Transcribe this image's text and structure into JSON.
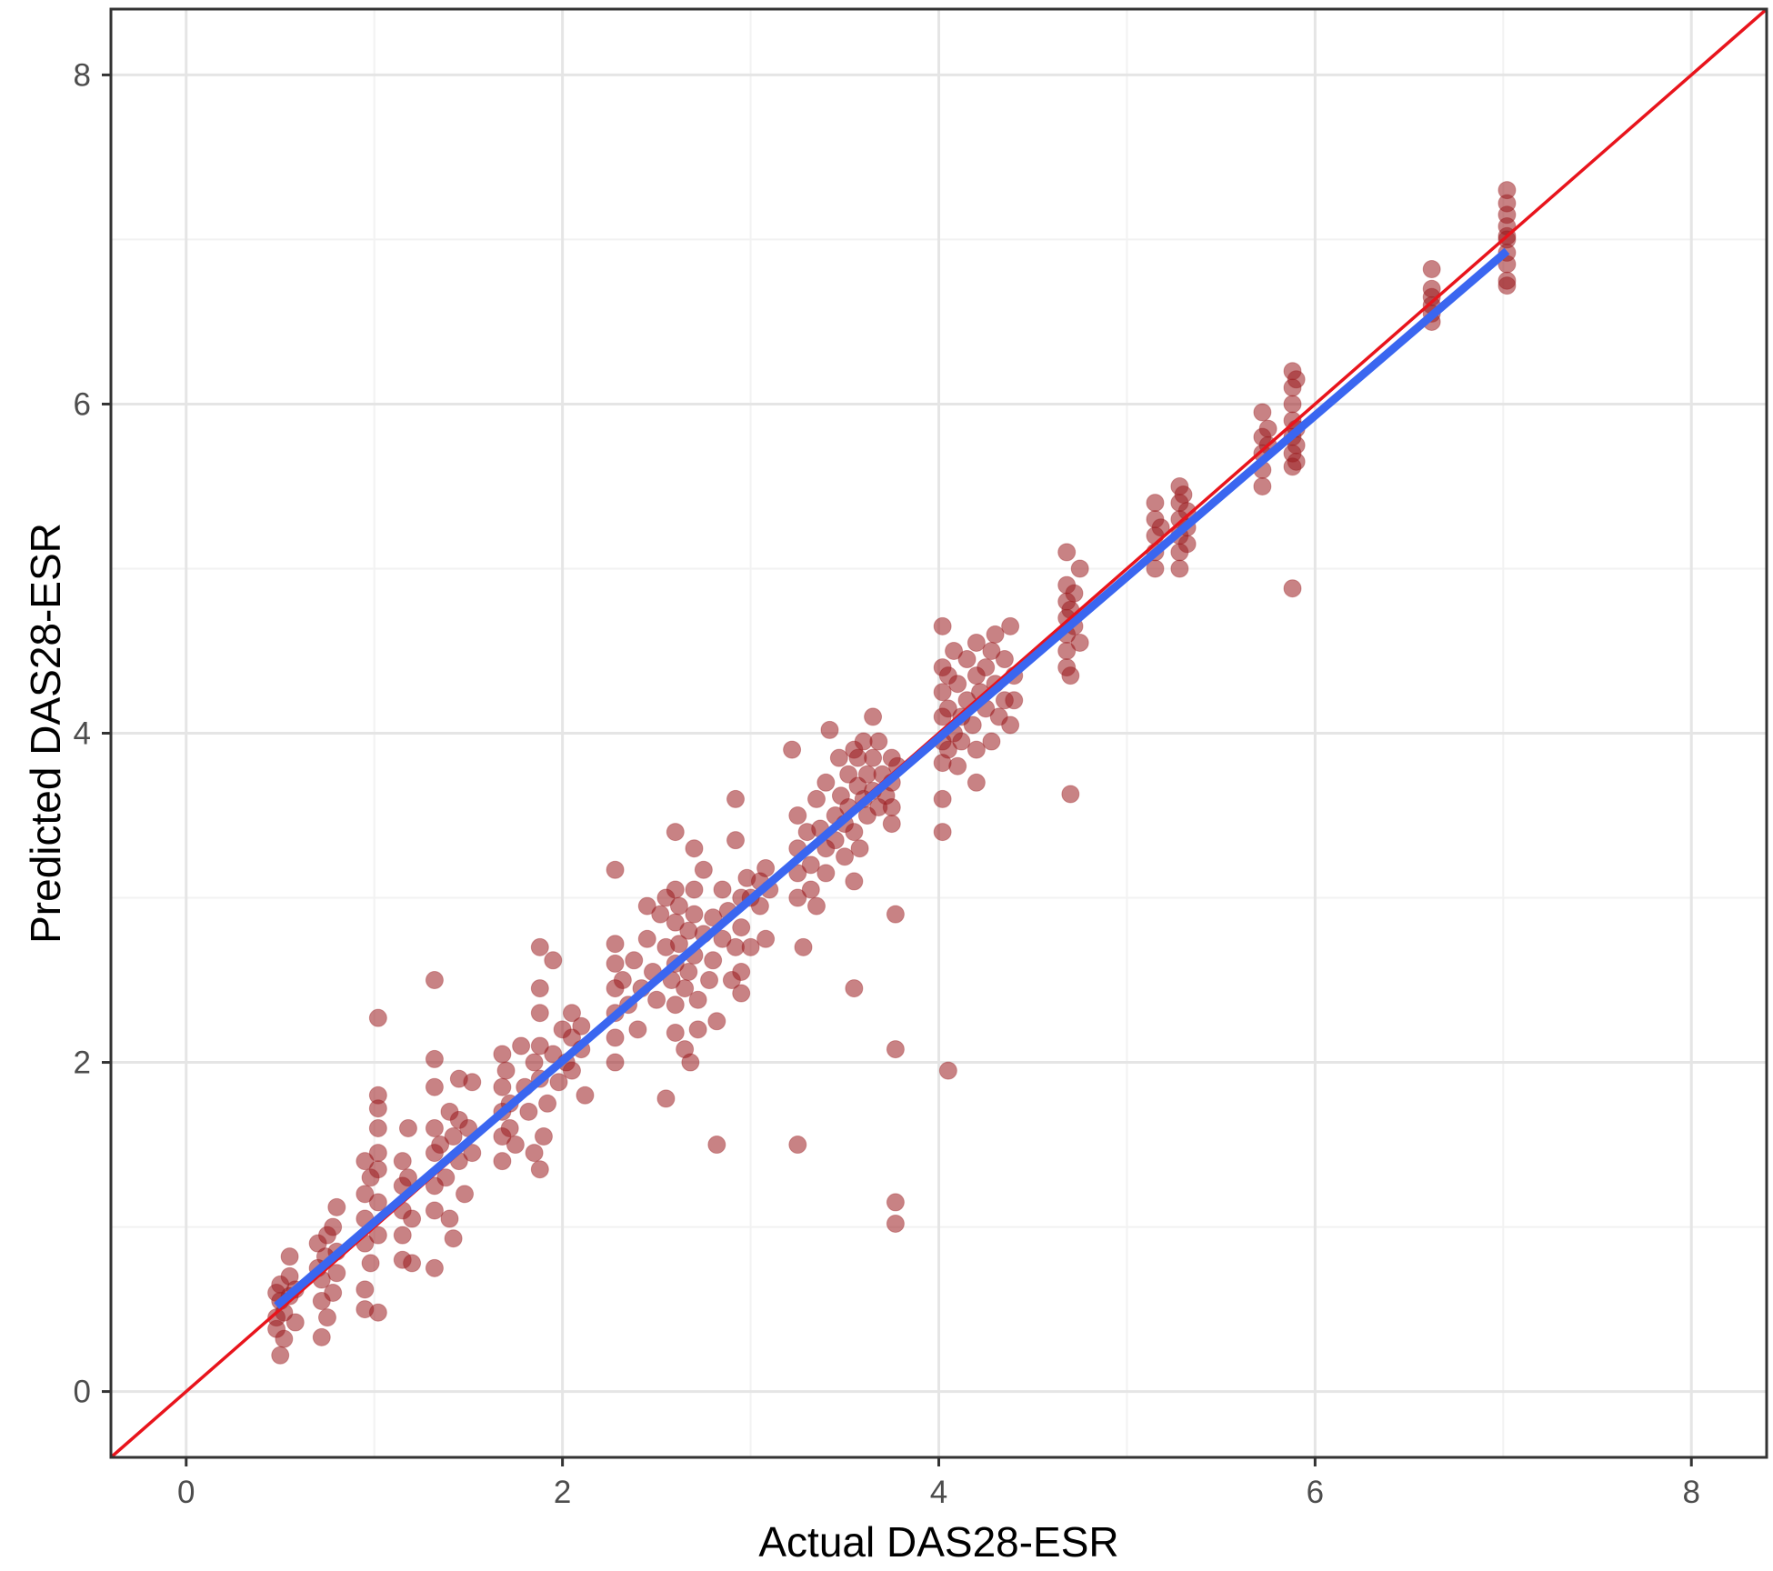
{
  "colors": {
    "points": "#9b1c1f",
    "identity_line": "#e8141c",
    "fit_line": "#3a66f0",
    "grid_major": "#e5e5e5",
    "grid_minor": "#f2f2f2",
    "panel_border": "#333333",
    "tick_text": "#4d4d4d"
  },
  "chart_data": {
    "type": "scatter",
    "title": "",
    "xlabel": "Actual DAS28-ESR",
    "ylabel": "Predicted DAS28-ESR",
    "xlim": [
      -0.4,
      8.4
    ],
    "ylim": [
      -0.4,
      8.4
    ],
    "x_ticks": [
      0,
      2,
      4,
      6,
      8
    ],
    "y_ticks": [
      0,
      2,
      4,
      6,
      8
    ],
    "x_tick_labels": [
      "0",
      "2",
      "4",
      "6",
      "8"
    ],
    "y_tick_labels": [
      "0",
      "2",
      "4",
      "6",
      "8"
    ],
    "grid": true,
    "lines": [
      {
        "kind": "identity",
        "x": [
          -0.4,
          8.4
        ],
        "y": [
          -0.4,
          8.4
        ]
      },
      {
        "kind": "regression",
        "x": [
          0.48,
          7.02
        ],
        "y": [
          0.52,
          6.93
        ]
      }
    ],
    "points": [
      [
        0.48,
        0.6
      ],
      [
        0.48,
        0.45
      ],
      [
        0.48,
        0.38
      ],
      [
        0.5,
        0.22
      ],
      [
        0.5,
        0.55
      ],
      [
        0.5,
        0.65
      ],
      [
        0.52,
        0.48
      ],
      [
        0.52,
        0.32
      ],
      [
        0.55,
        0.7
      ],
      [
        0.55,
        0.82
      ],
      [
        0.55,
        0.58
      ],
      [
        0.58,
        0.42
      ],
      [
        0.58,
        0.62
      ],
      [
        0.7,
        0.9
      ],
      [
        0.7,
        0.75
      ],
      [
        0.72,
        0.55
      ],
      [
        0.72,
        0.68
      ],
      [
        0.72,
        0.33
      ],
      [
        0.74,
        0.82
      ],
      [
        0.75,
        0.45
      ],
      [
        0.75,
        0.95
      ],
      [
        0.78,
        0.6
      ],
      [
        0.78,
        1.0
      ],
      [
        0.8,
        0.72
      ],
      [
        0.8,
        1.12
      ],
      [
        0.8,
        0.85
      ],
      [
        0.95,
        1.4
      ],
      [
        0.95,
        1.2
      ],
      [
        0.95,
        1.05
      ],
      [
        0.95,
        0.9
      ],
      [
        0.95,
        0.62
      ],
      [
        0.95,
        0.5
      ],
      [
        0.98,
        1.3
      ],
      [
        0.98,
        0.78
      ],
      [
        1.02,
        1.8
      ],
      [
        1.02,
        1.72
      ],
      [
        1.02,
        1.6
      ],
      [
        1.02,
        1.45
      ],
      [
        1.02,
        1.35
      ],
      [
        1.02,
        1.15
      ],
      [
        1.02,
        0.95
      ],
      [
        1.02,
        0.48
      ],
      [
        1.02,
        2.27
      ],
      [
        1.15,
        1.4
      ],
      [
        1.15,
        1.25
      ],
      [
        1.15,
        1.1
      ],
      [
        1.15,
        0.95
      ],
      [
        1.15,
        0.8
      ],
      [
        1.18,
        1.6
      ],
      [
        1.18,
        1.3
      ],
      [
        1.2,
        1.05
      ],
      [
        1.2,
        0.78
      ],
      [
        1.32,
        2.5
      ],
      [
        1.32,
        2.02
      ],
      [
        1.32,
        1.85
      ],
      [
        1.32,
        1.6
      ],
      [
        1.32,
        1.45
      ],
      [
        1.32,
        1.25
      ],
      [
        1.32,
        1.1
      ],
      [
        1.32,
        0.75
      ],
      [
        1.35,
        1.5
      ],
      [
        1.38,
        1.3
      ],
      [
        1.4,
        1.7
      ],
      [
        1.4,
        1.05
      ],
      [
        1.42,
        1.55
      ],
      [
        1.42,
        0.93
      ],
      [
        1.45,
        1.9
      ],
      [
        1.45,
        1.65
      ],
      [
        1.45,
        1.4
      ],
      [
        1.48,
        1.2
      ],
      [
        1.5,
        1.6
      ],
      [
        1.52,
        1.45
      ],
      [
        1.52,
        1.88
      ],
      [
        1.68,
        2.05
      ],
      [
        1.68,
        1.85
      ],
      [
        1.68,
        1.7
      ],
      [
        1.68,
        1.55
      ],
      [
        1.68,
        1.4
      ],
      [
        1.7,
        1.95
      ],
      [
        1.72,
        1.75
      ],
      [
        1.72,
        1.6
      ],
      [
        1.75,
        1.5
      ],
      [
        1.78,
        2.1
      ],
      [
        1.8,
        1.85
      ],
      [
        1.82,
        1.7
      ],
      [
        1.85,
        2.0
      ],
      [
        1.85,
        1.45
      ],
      [
        1.88,
        2.7
      ],
      [
        1.88,
        2.45
      ],
      [
        1.88,
        2.3
      ],
      [
        1.88,
        2.1
      ],
      [
        1.88,
        1.9
      ],
      [
        1.88,
        1.35
      ],
      [
        1.9,
        1.55
      ],
      [
        1.92,
        1.75
      ],
      [
        1.95,
        2.62
      ],
      [
        1.95,
        2.05
      ],
      [
        1.98,
        1.88
      ],
      [
        2.0,
        2.2
      ],
      [
        2.02,
        2.0
      ],
      [
        2.05,
        2.3
      ],
      [
        2.05,
        2.15
      ],
      [
        2.05,
        1.95
      ],
      [
        2.1,
        2.22
      ],
      [
        2.1,
        2.08
      ],
      [
        2.12,
        1.8
      ],
      [
        2.28,
        3.17
      ],
      [
        2.28,
        2.72
      ],
      [
        2.28,
        2.6
      ],
      [
        2.28,
        2.45
      ],
      [
        2.28,
        2.3
      ],
      [
        2.28,
        2.15
      ],
      [
        2.28,
        2.0
      ],
      [
        2.32,
        2.5
      ],
      [
        2.35,
        2.35
      ],
      [
        2.38,
        2.62
      ],
      [
        2.4,
        2.2
      ],
      [
        2.42,
        2.45
      ],
      [
        2.45,
        2.95
      ],
      [
        2.45,
        2.75
      ],
      [
        2.48,
        2.55
      ],
      [
        2.5,
        2.38
      ],
      [
        2.52,
        2.9
      ],
      [
        2.55,
        3.0
      ],
      [
        2.55,
        2.7
      ],
      [
        2.55,
        1.78
      ],
      [
        2.58,
        2.5
      ],
      [
        2.6,
        3.4
      ],
      [
        2.6,
        3.05
      ],
      [
        2.6,
        2.85
      ],
      [
        2.6,
        2.6
      ],
      [
        2.6,
        2.35
      ],
      [
        2.6,
        2.18
      ],
      [
        2.62,
        2.95
      ],
      [
        2.62,
        2.72
      ],
      [
        2.65,
        2.45
      ],
      [
        2.65,
        2.08
      ],
      [
        2.67,
        2.8
      ],
      [
        2.67,
        2.55
      ],
      [
        2.68,
        2.0
      ],
      [
        2.7,
        3.3
      ],
      [
        2.7,
        3.05
      ],
      [
        2.7,
        2.9
      ],
      [
        2.7,
        2.65
      ],
      [
        2.72,
        2.38
      ],
      [
        2.72,
        2.2
      ],
      [
        2.75,
        2.78
      ],
      [
        2.75,
        3.17
      ],
      [
        2.78,
        2.5
      ],
      [
        2.8,
        2.62
      ],
      [
        2.8,
        2.88
      ],
      [
        2.82,
        1.5
      ],
      [
        2.82,
        2.25
      ],
      [
        2.85,
        3.05
      ],
      [
        2.85,
        2.75
      ],
      [
        2.88,
        2.92
      ],
      [
        2.9,
        2.5
      ],
      [
        2.92,
        2.7
      ],
      [
        2.92,
        3.35
      ],
      [
        2.92,
        3.6
      ],
      [
        2.95,
        3.0
      ],
      [
        2.95,
        2.82
      ],
      [
        2.95,
        2.55
      ],
      [
        2.95,
        2.42
      ],
      [
        2.98,
        3.12
      ],
      [
        3.0,
        3.0
      ],
      [
        3.0,
        2.7
      ],
      [
        3.05,
        3.1
      ],
      [
        3.05,
        2.95
      ],
      [
        3.08,
        3.18
      ],
      [
        3.08,
        2.75
      ],
      [
        3.1,
        3.05
      ],
      [
        3.22,
        3.9
      ],
      [
        3.25,
        3.5
      ],
      [
        3.25,
        3.3
      ],
      [
        3.25,
        3.15
      ],
      [
        3.25,
        3.0
      ],
      [
        3.25,
        1.5
      ],
      [
        3.28,
        2.7
      ],
      [
        3.3,
        3.4
      ],
      [
        3.32,
        3.2
      ],
      [
        3.32,
        3.05
      ],
      [
        3.35,
        2.95
      ],
      [
        3.35,
        3.6
      ],
      [
        3.37,
        3.42
      ],
      [
        3.4,
        3.3
      ],
      [
        3.4,
        3.15
      ],
      [
        3.4,
        3.7
      ],
      [
        3.42,
        4.02
      ],
      [
        3.45,
        3.5
      ],
      [
        3.45,
        3.35
      ],
      [
        3.47,
        3.85
      ],
      [
        3.48,
        3.62
      ],
      [
        3.5,
        3.25
      ],
      [
        3.5,
        3.45
      ],
      [
        3.52,
        3.75
      ],
      [
        3.52,
        3.55
      ],
      [
        3.55,
        3.4
      ],
      [
        3.55,
        3.9
      ],
      [
        3.55,
        2.45
      ],
      [
        3.55,
        3.1
      ],
      [
        3.57,
        3.68
      ],
      [
        3.57,
        3.85
      ],
      [
        3.58,
        3.3
      ],
      [
        3.6,
        3.95
      ],
      [
        3.6,
        3.6
      ],
      [
        3.62,
        3.75
      ],
      [
        3.62,
        3.5
      ],
      [
        3.65,
        4.1
      ],
      [
        3.65,
        3.85
      ],
      [
        3.65,
        3.65
      ],
      [
        3.68,
        3.55
      ],
      [
        3.68,
        3.95
      ],
      [
        3.7,
        3.75
      ],
      [
        3.72,
        3.62
      ],
      [
        3.75,
        3.85
      ],
      [
        3.75,
        3.7
      ],
      [
        3.75,
        3.55
      ],
      [
        3.75,
        3.45
      ],
      [
        3.77,
        2.9
      ],
      [
        3.77,
        2.08
      ],
      [
        3.77,
        1.15
      ],
      [
        3.77,
        1.02
      ],
      [
        3.78,
        3.8
      ],
      [
        4.02,
        4.65
      ],
      [
        4.02,
        4.4
      ],
      [
        4.02,
        4.25
      ],
      [
        4.02,
        4.1
      ],
      [
        4.02,
        3.95
      ],
      [
        4.02,
        3.82
      ],
      [
        4.02,
        3.6
      ],
      [
        4.02,
        3.4
      ],
      [
        4.05,
        4.35
      ],
      [
        4.05,
        4.15
      ],
      [
        4.05,
        3.9
      ],
      [
        4.05,
        1.95
      ],
      [
        4.08,
        4.5
      ],
      [
        4.08,
        4.0
      ],
      [
        4.1,
        4.3
      ],
      [
        4.1,
        3.8
      ],
      [
        4.12,
        4.1
      ],
      [
        4.12,
        3.95
      ],
      [
        4.15,
        4.45
      ],
      [
        4.15,
        4.2
      ],
      [
        4.18,
        4.05
      ],
      [
        4.2,
        4.55
      ],
      [
        4.2,
        4.35
      ],
      [
        4.2,
        3.9
      ],
      [
        4.2,
        3.7
      ],
      [
        4.22,
        4.25
      ],
      [
        4.25,
        4.4
      ],
      [
        4.25,
        4.15
      ],
      [
        4.28,
        4.5
      ],
      [
        4.28,
        3.95
      ],
      [
        4.3,
        4.6
      ],
      [
        4.3,
        4.3
      ],
      [
        4.32,
        4.1
      ],
      [
        4.35,
        4.45
      ],
      [
        4.35,
        4.2
      ],
      [
        4.38,
        4.05
      ],
      [
        4.38,
        4.65
      ],
      [
        4.4,
        4.35
      ],
      [
        4.4,
        4.2
      ],
      [
        4.68,
        5.1
      ],
      [
        4.68,
        4.9
      ],
      [
        4.68,
        4.8
      ],
      [
        4.68,
        4.7
      ],
      [
        4.68,
        4.6
      ],
      [
        4.68,
        4.5
      ],
      [
        4.68,
        4.4
      ],
      [
        4.7,
        4.35
      ],
      [
        4.7,
        4.75
      ],
      [
        4.7,
        3.63
      ],
      [
        4.72,
        4.65
      ],
      [
        4.72,
        4.85
      ],
      [
        4.75,
        5.0
      ],
      [
        4.75,
        4.55
      ],
      [
        5.15,
        5.4
      ],
      [
        5.15,
        5.3
      ],
      [
        5.15,
        5.2
      ],
      [
        5.15,
        5.1
      ],
      [
        5.15,
        5.0
      ],
      [
        5.18,
        5.25
      ],
      [
        5.28,
        5.5
      ],
      [
        5.28,
        5.4
      ],
      [
        5.28,
        5.3
      ],
      [
        5.28,
        5.2
      ],
      [
        5.28,
        5.1
      ],
      [
        5.28,
        5.0
      ],
      [
        5.3,
        5.45
      ],
      [
        5.32,
        5.35
      ],
      [
        5.32,
        5.15
      ],
      [
        5.32,
        5.25
      ],
      [
        5.72,
        5.95
      ],
      [
        5.72,
        5.8
      ],
      [
        5.72,
        5.7
      ],
      [
        5.72,
        5.6
      ],
      [
        5.72,
        5.5
      ],
      [
        5.75,
        5.75
      ],
      [
        5.75,
        5.85
      ],
      [
        5.88,
        6.2
      ],
      [
        5.88,
        6.1
      ],
      [
        5.88,
        6.0
      ],
      [
        5.88,
        5.9
      ],
      [
        5.88,
        5.8
      ],
      [
        5.88,
        5.7
      ],
      [
        5.88,
        5.62
      ],
      [
        5.88,
        4.88
      ],
      [
        5.9,
        6.15
      ],
      [
        5.9,
        5.85
      ],
      [
        5.9,
        5.65
      ],
      [
        5.9,
        5.75
      ],
      [
        6.62,
        6.82
      ],
      [
        6.62,
        6.7
      ],
      [
        6.62,
        6.6
      ],
      [
        6.62,
        6.5
      ],
      [
        6.62,
        6.55
      ],
      [
        6.62,
        6.65
      ],
      [
        7.02,
        7.3
      ],
      [
        7.02,
        7.15
      ],
      [
        7.02,
        7.08
      ],
      [
        7.02,
        7.0
      ],
      [
        7.02,
        6.92
      ],
      [
        7.02,
        6.85
      ],
      [
        7.02,
        6.75
      ],
      [
        7.02,
        6.72
      ],
      [
        7.02,
        7.22
      ],
      [
        7.02,
        7.02
      ]
    ]
  }
}
